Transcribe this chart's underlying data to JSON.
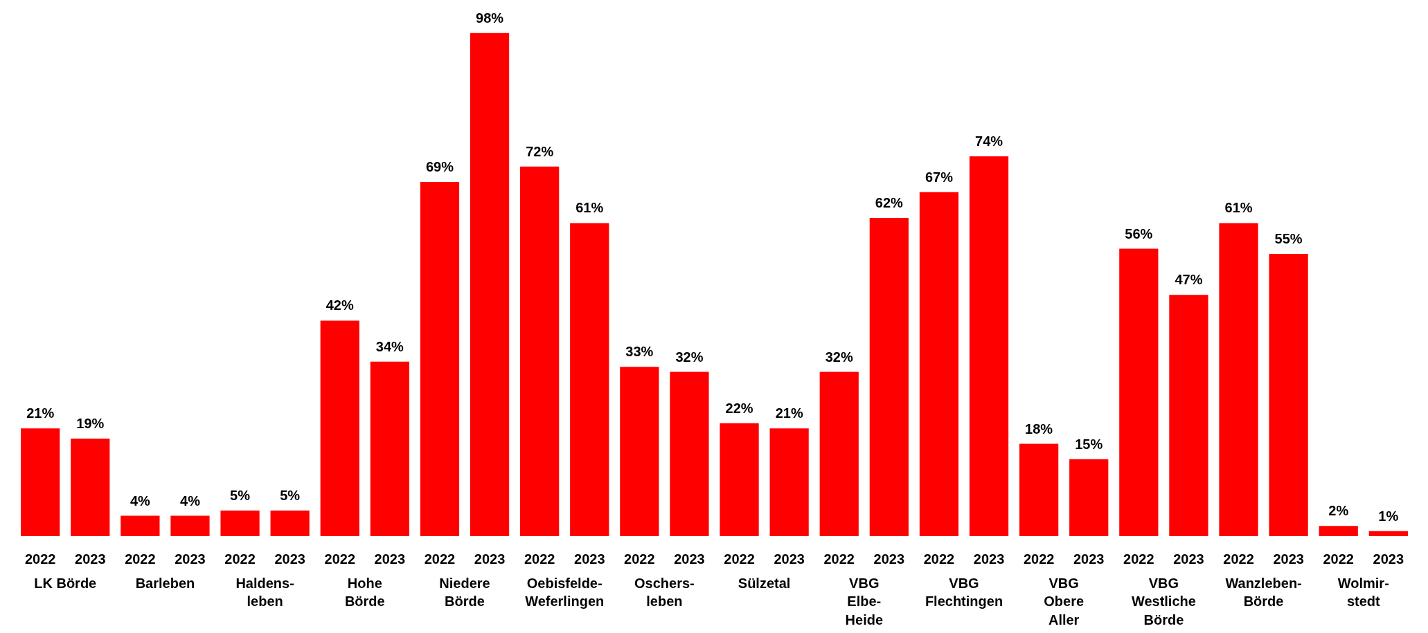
{
  "chart_data": {
    "type": "bar",
    "categories": [
      "2022",
      "2023",
      "2022",
      "2023",
      "2022",
      "2023",
      "2022",
      "2023",
      "2022",
      "2023",
      "2022",
      "2023",
      "2022",
      "2023",
      "2022",
      "2023",
      "2022",
      "2023",
      "2022",
      "2023",
      "2022",
      "2023",
      "2022",
      "2023",
      "2022",
      "2023",
      "2022",
      "2023"
    ],
    "values": [
      21,
      19,
      4,
      4,
      5,
      5,
      42,
      34,
      69,
      98,
      72,
      61,
      33,
      32,
      22,
      21,
      32,
      62,
      67,
      74,
      18,
      15,
      56,
      47,
      61,
      55,
      2,
      1
    ],
    "value_labels": [
      "21%",
      "19%",
      "4%",
      "4%",
      "5%",
      "5%",
      "42%",
      "34%",
      "69%",
      "98%",
      "72%",
      "61%",
      "33%",
      "32%",
      "22%",
      "21%",
      "32%",
      "62%",
      "67%",
      "74%",
      "18%",
      "15%",
      "56%",
      "47%",
      "61%",
      "55%",
      "2%",
      "1%"
    ],
    "color": "#ff0000",
    "annotations": [
      "LK Börde",
      "Barleben",
      "Haldens-\nleben",
      "Hohe\nBörde",
      "Niedere\nBörde",
      "Oebisfelde-\nWeferlingen",
      "Oschers-\nleben",
      "Sülzetal",
      "VBG\nElbe-\nHeide",
      "VBG\nFlechtingen",
      "VBG\nObere\nAller",
      "VBG\nWestliche\nBörde",
      "Wanzleben-\nBörde",
      "Wolmir-\nstedt"
    ],
    "grid": false,
    "tick_labels": false
  }
}
